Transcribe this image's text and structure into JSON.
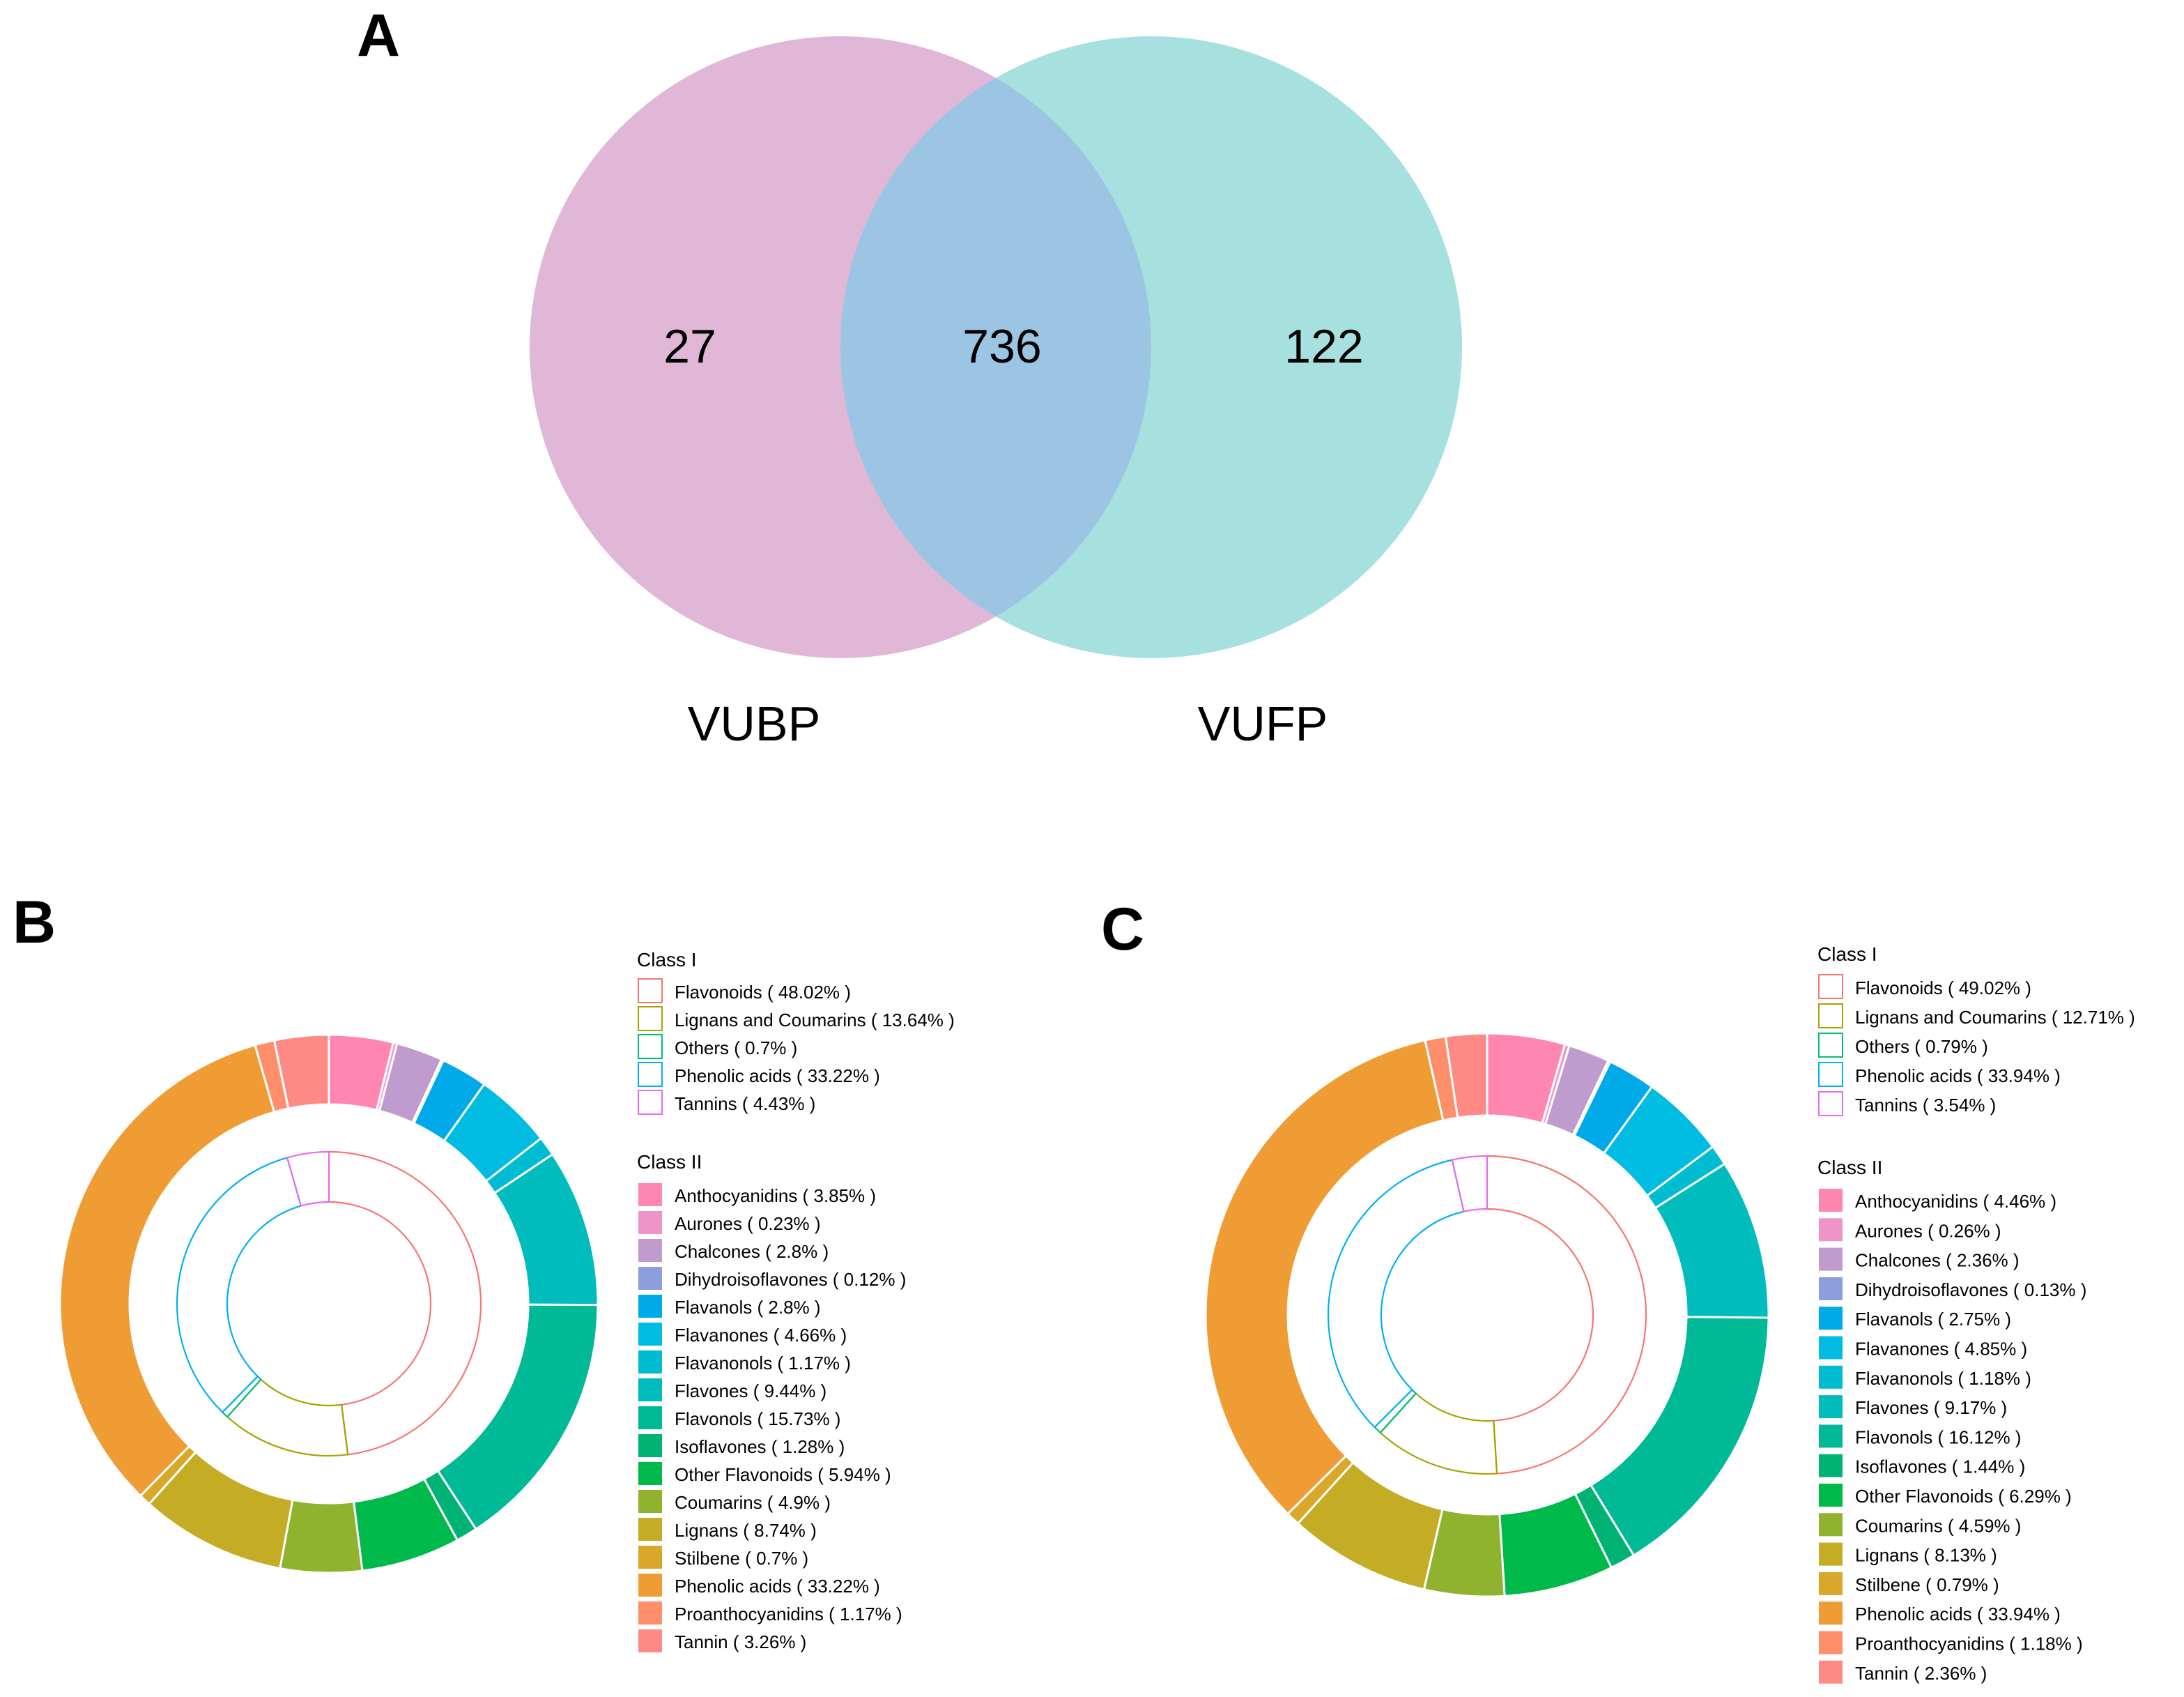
{
  "panel_labels": {
    "a": "A",
    "b": "B",
    "c": "C"
  },
  "legend_headings": {
    "class1": "Class I",
    "class2": "Class II"
  },
  "colors": {
    "vubp": "#e0b7d7",
    "vufp": "#a6e1e0",
    "overlap": "#9bc5e3",
    "class1": {
      "Flavonoids": "#f8766d",
      "Lignans and Coumarins": "#a3a500",
      "Others": "#00bf7d",
      "Phenolic acids": "#00b0f6",
      "Tannins": "#e76bf3"
    },
    "class2": {
      "Anthocyanidins": "#ff86b0",
      "Aurones": "#ee94c8",
      "Chalcones": "#c09bcd",
      "Dihydroisoflavones": "#8c9fdc",
      "Flavanols": "#00a9e8",
      "Flavanones": "#00bbe2",
      "Flavanonols": "#00bcd2",
      "Flavones": "#00bcbd",
      "Flavonols": "#00b996",
      "Isoflavones": "#00b374",
      "Other Flavonoids": "#00b94b",
      "Coumarins": "#8fb22f",
      "Lignans": "#c4ad25",
      "Stilbene": "#d9a72a",
      "Phenolic acids": "#f09c35",
      "Proanthocyanidins": "#ff8f6b",
      "Tannin": "#ff8a85"
    }
  },
  "chart_data": [
    {
      "type": "venn",
      "sets": [
        "VUBP",
        "VUFP"
      ],
      "values": {
        "VUBP_only": "27",
        "both": "736",
        "VUFP_only": "122"
      }
    },
    {
      "type": "pie",
      "class1": [
        {
          "name": "Flavonoids",
          "value": 48.02,
          "label": "Flavonoids ( 48.02% )"
        },
        {
          "name": "Lignans and Coumarins",
          "value": 13.64,
          "label": "Lignans and Coumarins ( 13.64% )"
        },
        {
          "name": "Others",
          "value": 0.7,
          "label": "Others ( 0.7% )"
        },
        {
          "name": "Phenolic acids",
          "value": 33.22,
          "label": "Phenolic acids ( 33.22% )"
        },
        {
          "name": "Tannins",
          "value": 4.43,
          "label": "Tannins ( 4.43% )"
        }
      ],
      "class2": [
        {
          "name": "Anthocyanidins",
          "value": 3.85,
          "label": "Anthocyanidins ( 3.85% )"
        },
        {
          "name": "Aurones",
          "value": 0.23,
          "label": "Aurones ( 0.23% )"
        },
        {
          "name": "Chalcones",
          "value": 2.8,
          "label": "Chalcones ( 2.8% )"
        },
        {
          "name": "Dihydroisoflavones",
          "value": 0.12,
          "label": "Dihydroisoflavones ( 0.12% )"
        },
        {
          "name": "Flavanols",
          "value": 2.8,
          "label": "Flavanols ( 2.8% )"
        },
        {
          "name": "Flavanones",
          "value": 4.66,
          "label": "Flavanones ( 4.66% )"
        },
        {
          "name": "Flavanonols",
          "value": 1.17,
          "label": "Flavanonols ( 1.17% )"
        },
        {
          "name": "Flavones",
          "value": 9.44,
          "label": "Flavones ( 9.44% )"
        },
        {
          "name": "Flavonols",
          "value": 15.73,
          "label": "Flavonols ( 15.73% )"
        },
        {
          "name": "Isoflavones",
          "value": 1.28,
          "label": "Isoflavones ( 1.28% )"
        },
        {
          "name": "Other Flavonoids",
          "value": 5.94,
          "label": "Other Flavonoids ( 5.94% )"
        },
        {
          "name": "Coumarins",
          "value": 4.9,
          "label": "Coumarins ( 4.9% )"
        },
        {
          "name": "Lignans",
          "value": 8.74,
          "label": "Lignans ( 8.74% )"
        },
        {
          "name": "Stilbene",
          "value": 0.7,
          "label": "Stilbene ( 0.7% )"
        },
        {
          "name": "Phenolic acids",
          "value": 33.22,
          "label": "Phenolic acids ( 33.22% )"
        },
        {
          "name": "Proanthocyanidins",
          "value": 1.17,
          "label": "Proanthocyanidins ( 1.17% )"
        },
        {
          "name": "Tannin",
          "value": 3.26,
          "label": "Tannin ( 3.26% )"
        }
      ]
    },
    {
      "type": "pie",
      "class1": [
        {
          "name": "Flavonoids",
          "value": 49.02,
          "label": "Flavonoids ( 49.02% )"
        },
        {
          "name": "Lignans and Coumarins",
          "value": 12.71,
          "label": "Lignans and Coumarins ( 12.71% )"
        },
        {
          "name": "Others",
          "value": 0.79,
          "label": "Others ( 0.79% )"
        },
        {
          "name": "Phenolic acids",
          "value": 33.94,
          "label": "Phenolic acids ( 33.94% )"
        },
        {
          "name": "Tannins",
          "value": 3.54,
          "label": "Tannins ( 3.54% )"
        }
      ],
      "class2": [
        {
          "name": "Anthocyanidins",
          "value": 4.46,
          "label": "Anthocyanidins ( 4.46% )"
        },
        {
          "name": "Aurones",
          "value": 0.26,
          "label": "Aurones ( 0.26% )"
        },
        {
          "name": "Chalcones",
          "value": 2.36,
          "label": "Chalcones ( 2.36% )"
        },
        {
          "name": "Dihydroisoflavones",
          "value": 0.13,
          "label": "Dihydroisoflavones ( 0.13% )"
        },
        {
          "name": "Flavanols",
          "value": 2.75,
          "label": "Flavanols ( 2.75% )"
        },
        {
          "name": "Flavanones",
          "value": 4.85,
          "label": "Flavanones ( 4.85% )"
        },
        {
          "name": "Flavanonols",
          "value": 1.18,
          "label": "Flavanonols ( 1.18% )"
        },
        {
          "name": "Flavones",
          "value": 9.17,
          "label": "Flavones ( 9.17% )"
        },
        {
          "name": "Flavonols",
          "value": 16.12,
          "label": "Flavonols ( 16.12% )"
        },
        {
          "name": "Isoflavones",
          "value": 1.44,
          "label": "Isoflavones ( 1.44% )"
        },
        {
          "name": "Other Flavonoids",
          "value": 6.29,
          "label": "Other Flavonoids ( 6.29% )"
        },
        {
          "name": "Coumarins",
          "value": 4.59,
          "label": "Coumarins ( 4.59% )"
        },
        {
          "name": "Lignans",
          "value": 8.13,
          "label": "Lignans ( 8.13% )"
        },
        {
          "name": "Stilbene",
          "value": 0.79,
          "label": "Stilbene ( 0.79% )"
        },
        {
          "name": "Phenolic acids",
          "value": 33.94,
          "label": "Phenolic acids ( 33.94% )"
        },
        {
          "name": "Proanthocyanidins",
          "value": 1.18,
          "label": "Proanthocyanidins ( 1.18% )"
        },
        {
          "name": "Tannin",
          "value": 2.36,
          "label": "Tannin ( 2.36% )"
        }
      ]
    }
  ]
}
